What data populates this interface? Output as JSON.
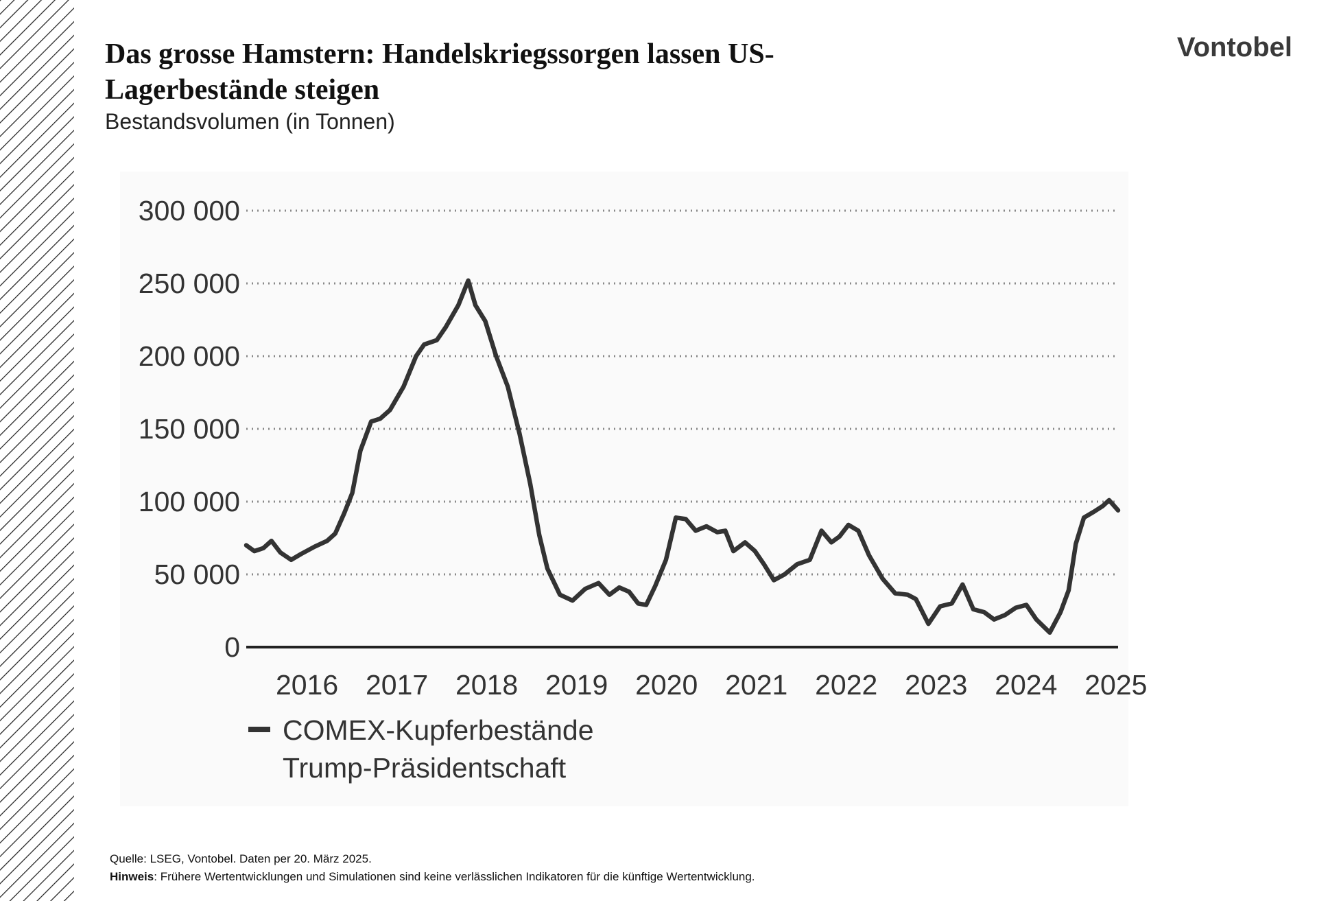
{
  "brand": "Vontobel",
  "chart_data": {
    "type": "line",
    "title_lines": [
      "Das grosse Hamstern: Handelskriegssorgen lassen US-",
      "Lagerbestände steigen"
    ],
    "subtitle": "Bestandsvolumen (in Tonnen)",
    "x": [
      2015.66,
      2015.75,
      2015.85,
      2015.94,
      2016.04,
      2016.16,
      2016.27,
      2016.42,
      2016.56,
      2016.65,
      2016.75,
      2016.84,
      2016.93,
      2017.05,
      2017.15,
      2017.26,
      2017.41,
      2017.55,
      2017.64,
      2017.78,
      2017.88,
      2018.02,
      2018.13,
      2018.21,
      2018.32,
      2018.44,
      2018.57,
      2018.7,
      2018.82,
      2018.92,
      2019.01,
      2019.15,
      2019.29,
      2019.43,
      2019.58,
      2019.7,
      2019.81,
      2019.92,
      2020.02,
      2020.11,
      2020.21,
      2020.33,
      2020.44,
      2020.55,
      2020.66,
      2020.78,
      2020.9,
      2020.99,
      2021.08,
      2021.21,
      2021.32,
      2021.42,
      2021.53,
      2021.65,
      2021.79,
      2021.93,
      2022.06,
      2022.17,
      2022.26,
      2022.36,
      2022.47,
      2022.59,
      2022.74,
      2022.88,
      2023.02,
      2023.11,
      2023.25,
      2023.38,
      2023.51,
      2023.63,
      2023.75,
      2023.87,
      2023.98,
      2024.1,
      2024.22,
      2024.34,
      2024.45,
      2024.6,
      2024.72,
      2024.81,
      2024.89,
      2024.98,
      2025.09,
      2025.19,
      2025.26,
      2025.36
    ],
    "series": [
      {
        "name": "COMEX-Kupferbestände",
        "color": "#333333",
        "values": [
          70000,
          66000,
          68000,
          73000,
          65000,
          60000,
          64000,
          69000,
          73000,
          78000,
          92000,
          106000,
          135000,
          155000,
          157000,
          163000,
          179000,
          200000,
          208000,
          211000,
          220000,
          235000,
          252000,
          235000,
          224000,
          200000,
          179000,
          147000,
          112000,
          77000,
          54000,
          36000,
          32000,
          40000,
          44000,
          36000,
          41000,
          38000,
          30000,
          29000,
          42000,
          60000,
          89000,
          88000,
          80000,
          83000,
          79000,
          80000,
          66000,
          72000,
          66000,
          57000,
          46000,
          50000,
          57000,
          60000,
          80000,
          72000,
          76000,
          84000,
          80000,
          63000,
          47000,
          37000,
          36000,
          33000,
          16000,
          28000,
          30000,
          43000,
          26000,
          24000,
          19000,
          22000,
          27000,
          29000,
          19000,
          10000,
          24000,
          39000,
          71000,
          89000,
          93000,
          97000,
          101000,
          94000
        ]
      }
    ],
    "legend_note": "Trump-Präsidentschaft",
    "xlim": [
      2015.66,
      2025.36
    ],
    "xticks": [
      2016,
      2017,
      2018,
      2019,
      2020,
      2021,
      2022,
      2023,
      2024,
      2025
    ],
    "ylim": [
      0,
      300000
    ],
    "yticks": [
      0,
      {
        "value": 50000,
        "label": "50 000"
      },
      {
        "value": 100000,
        "label": "100 000"
      },
      {
        "value": 150000,
        "label": "150 000"
      },
      {
        "value": 200000,
        "label": "200 000"
      },
      {
        "value": 250000,
        "label": "250 000"
      },
      {
        "value": 300000,
        "label": "300 000"
      }
    ],
    "grid": true
  },
  "footer": {
    "source": "Quelle: LSEG, Vontobel. Daten per 20. März 2025.",
    "note_label": "Hinweis",
    "note_text": ": Frühere Wertentwicklungen und Simulationen sind keine verlässlichen Indikatoren für die künftige Wertentwicklung."
  }
}
